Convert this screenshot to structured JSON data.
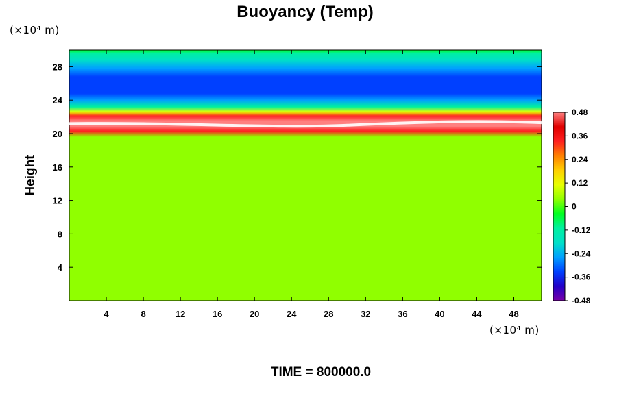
{
  "chart_data": {
    "type": "heatmap",
    "title": "Buoyancy (Temp)",
    "xlabel": "",
    "ylabel": "Height",
    "x_unit": "(×10⁴ m)",
    "y_unit": "(×10⁴ m)",
    "xlim": [
      0,
      51
    ],
    "ylim": [
      0,
      30
    ],
    "x_ticks": [
      4,
      8,
      12,
      16,
      20,
      24,
      28,
      32,
      36,
      40,
      44,
      48
    ],
    "y_ticks": [
      4,
      8,
      12,
      16,
      20,
      24,
      28
    ],
    "colorbar": {
      "min": -0.48,
      "max": 0.48,
      "ticks": [
        0.48,
        0.36,
        0.24,
        0.12,
        0,
        -0.12,
        -0.24,
        -0.36,
        -0.48
      ],
      "tick_labels": [
        "0.48",
        "0.36",
        "0.24",
        "0.12",
        "0",
        "-0.12",
        "-0.24",
        "-0.36",
        "-0.48"
      ],
      "colormap": [
        "#7a00a8",
        "#2200c8",
        "#0040ff",
        "#00a0ff",
        "#00e0c8",
        "#00f0a0",
        "#00ff20",
        "#90ff00",
        "#e8ff00",
        "#ffd000",
        "#ff8000",
        "#ff2020",
        "#e00000",
        "#ff8080"
      ]
    },
    "vertical_profile": [
      {
        "height": 0,
        "value": 0.0
      },
      {
        "height": 18.5,
        "value": 0.02
      },
      {
        "height": 19.6,
        "value": 0.06
      },
      {
        "height": 20.3,
        "value": 0.3
      },
      {
        "height": 20.9,
        "value": 0.48
      },
      {
        "height": 21.5,
        "value": 0.48
      },
      {
        "height": 22.1,
        "value": 0.3
      },
      {
        "height": 22.6,
        "value": 0.08
      },
      {
        "height": 23.2,
        "value": -0.1
      },
      {
        "height": 24.0,
        "value": -0.26
      },
      {
        "height": 24.8,
        "value": -0.32
      },
      {
        "height": 25.8,
        "value": -0.36
      },
      {
        "height": 26.8,
        "value": -0.32
      },
      {
        "height": 27.8,
        "value": -0.26
      },
      {
        "height": 28.8,
        "value": -0.18
      },
      {
        "height": 29.6,
        "value": -0.1
      },
      {
        "height": 30,
        "value": -0.06
      }
    ]
  },
  "footer": {
    "time_label": "TIME = 800000.0"
  }
}
